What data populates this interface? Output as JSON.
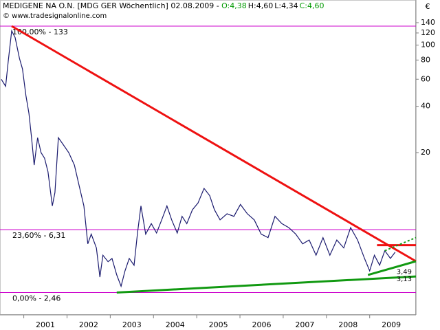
{
  "chart_data": {
    "type": "line",
    "title": "MEDIGENE NA O.N. [MDG GER  Wöchentlich] 02.08.2009 -",
    "quote": [
      {
        "text": "O:4,38",
        "color": "#009900"
      },
      {
        "text": "H:4,60",
        "color": "#000000"
      },
      {
        "text": "L:4,34",
        "color": "#000000"
      },
      {
        "text": "C:4,60",
        "color": "#009900"
      }
    ],
    "source": "© www.tradesignalonline.com",
    "currency": "€",
    "log_scale": true,
    "xlim": [
      2000.45,
      2010.07
    ],
    "ylim": [
      1.76,
      160
    ],
    "xticks": [
      2001,
      2002,
      2003,
      2004,
      2005,
      2006,
      2007,
      2008,
      2009
    ],
    "yticks": [
      20,
      40,
      60,
      80,
      100,
      120,
      140
    ],
    "series": [
      {
        "color": "#1a1a6e",
        "x": [
          2000.48,
          2000.58,
          2000.64,
          2000.72,
          2000.8,
          2000.9,
          2000.97,
          2001.05,
          2001.12,
          2001.18,
          2001.24,
          2001.32,
          2001.4,
          2001.48,
          2001.56,
          2001.66,
          2001.72,
          2001.8,
          2001.91,
          2002.04,
          2002.17,
          2002.28,
          2002.39,
          2002.48,
          2002.56,
          2002.68,
          2002.76,
          2002.83,
          2002.95,
          2003.04,
          2003.15,
          2003.25,
          2003.34,
          2003.44,
          2003.55,
          2003.63,
          2003.71,
          2003.82,
          2003.95,
          2004.07,
          2004.19,
          2004.31,
          2004.42,
          2004.55,
          2004.66,
          2004.77,
          2004.9,
          2005.03,
          2005.17,
          2005.3,
          2005.41,
          2005.54,
          2005.7,
          2005.86,
          2006.01,
          2006.17,
          2006.33,
          2006.49,
          2006.65,
          2006.81,
          2006.97,
          2007.13,
          2007.29,
          2007.45,
          2007.6,
          2007.76,
          2007.92,
          2008.08,
          2008.24,
          2008.4,
          2008.56,
          2008.72,
          2008.88,
          2009.0,
          2009.11,
          2009.23,
          2009.35,
          2009.48,
          2009.59
        ],
        "values": [
          60,
          54,
          78,
          124,
          112,
          82,
          70,
          47,
          36,
          25,
          16.6,
          25,
          20,
          18.4,
          15,
          9.0,
          11,
          25,
          22.6,
          20,
          16.6,
          12.2,
          9.0,
          5.1,
          5.9,
          4.8,
          3.1,
          4.3,
          3.9,
          4.1,
          3.2,
          2.7,
          3.4,
          4.1,
          3.7,
          6.0,
          9.0,
          5.9,
          6.9,
          6.0,
          7.3,
          9.0,
          7.3,
          6.0,
          7.7,
          6.9,
          8.5,
          9.4,
          11.7,
          10.5,
          8.5,
          7.3,
          8.0,
          7.7,
          9.2,
          8.0,
          7.3,
          5.9,
          5.6,
          7.7,
          6.9,
          6.5,
          5.9,
          5.1,
          5.4,
          4.3,
          5.6,
          4.3,
          5.4,
          4.8,
          6.5,
          5.4,
          4.1,
          3.4,
          4.3,
          3.7,
          4.6,
          4.1,
          4.5
        ]
      }
    ],
    "fib_color": "#cc00cc",
    "fib_levels": [
      {
        "value": 133,
        "label": "100,00% - 133"
      },
      {
        "value": 6.31,
        "label": "23,60% - 6,31"
      },
      {
        "value": 2.46,
        "label": "0,00% - 2,46"
      }
    ],
    "trendlines": [
      {
        "color": "#ee1111",
        "x": [
          2000.72,
          2010.07
        ],
        "values": [
          133,
          3.93
        ]
      },
      {
        "color": "#ee1111",
        "x": [
          2009.17,
          2010.07
        ],
        "values": [
          5.0,
          5.0
        ]
      },
      {
        "color": "#119911",
        "x": [
          2003.15,
          2010.07
        ],
        "values": [
          2.46,
          3.13
        ]
      },
      {
        "color": "#119911",
        "x": [
          2008.96,
          2010.07
        ],
        "values": [
          3.2,
          3.93
        ]
      },
      {
        "color": "#119911",
        "dashed": true,
        "x": [
          2009.35,
          2010.07
        ],
        "values": [
          4.6,
          5.6
        ]
      }
    ],
    "level_color": "#119911",
    "levels": [
      {
        "value": 3.49,
        "label": "3,49"
      },
      {
        "value": 3.13,
        "label": "3,13"
      }
    ]
  }
}
